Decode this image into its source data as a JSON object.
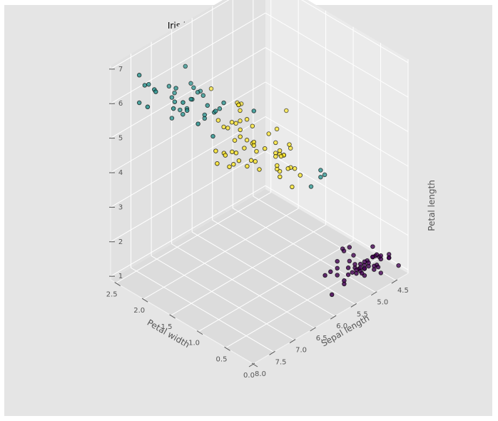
{
  "chart_data": {
    "type": "scatter",
    "title": "Iris k-means clustering with 3 clusters",
    "xlabel": "Petal width",
    "ylabel": "Sepal length",
    "zlabel": "Petal length",
    "x_ticks": [
      "0.0",
      "0.5",
      "1.0",
      "1.5",
      "2.0",
      "2.5"
    ],
    "y_ticks": [
      "4.5",
      "5.0",
      "5.5",
      "6.0",
      "6.5",
      "7.0",
      "7.5",
      "8.0"
    ],
    "z_ticks": [
      "1",
      "2",
      "3",
      "4",
      "5",
      "6",
      "7"
    ],
    "xlim": [
      0.0,
      2.6
    ],
    "ylim": [
      4.2,
      8.0
    ],
    "zlim": [
      0.9,
      7.1
    ],
    "grid": true,
    "colors": {
      "cluster_0": "#440154",
      "cluster_1": "#21918c",
      "cluster_2": "#fde725",
      "figure_background": "#e5e5e5"
    },
    "points": [
      {
        "x": 0.2,
        "y": 5.1,
        "z": 1.4,
        "c": 0
      },
      {
        "x": 0.2,
        "y": 4.9,
        "z": 1.4,
        "c": 0
      },
      {
        "x": 0.2,
        "y": 4.7,
        "z": 1.3,
        "c": 0
      },
      {
        "x": 0.2,
        "y": 4.6,
        "z": 1.5,
        "c": 0
      },
      {
        "x": 0.2,
        "y": 5.0,
        "z": 1.4,
        "c": 0
      },
      {
        "x": 0.4,
        "y": 5.4,
        "z": 1.7,
        "c": 0
      },
      {
        "x": 0.3,
        "y": 4.6,
        "z": 1.4,
        "c": 0
      },
      {
        "x": 0.2,
        "y": 5.0,
        "z": 1.5,
        "c": 0
      },
      {
        "x": 0.2,
        "y": 4.4,
        "z": 1.4,
        "c": 0
      },
      {
        "x": 0.1,
        "y": 4.9,
        "z": 1.5,
        "c": 0
      },
      {
        "x": 0.2,
        "y": 5.4,
        "z": 1.5,
        "c": 0
      },
      {
        "x": 0.2,
        "y": 4.8,
        "z": 1.6,
        "c": 0
      },
      {
        "x": 0.1,
        "y": 4.8,
        "z": 1.4,
        "c": 0
      },
      {
        "x": 0.1,
        "y": 4.3,
        "z": 1.1,
        "c": 0
      },
      {
        "x": 0.2,
        "y": 5.8,
        "z": 1.2,
        "c": 0
      },
      {
        "x": 0.4,
        "y": 5.7,
        "z": 1.5,
        "c": 0
      },
      {
        "x": 0.4,
        "y": 5.4,
        "z": 1.3,
        "c": 0
      },
      {
        "x": 0.3,
        "y": 5.1,
        "z": 1.4,
        "c": 0
      },
      {
        "x": 0.3,
        "y": 5.7,
        "z": 1.7,
        "c": 0
      },
      {
        "x": 0.3,
        "y": 5.1,
        "z": 1.5,
        "c": 0
      },
      {
        "x": 0.2,
        "y": 5.4,
        "z": 1.7,
        "c": 0
      },
      {
        "x": 0.4,
        "y": 5.1,
        "z": 1.5,
        "c": 0
      },
      {
        "x": 0.2,
        "y": 4.6,
        "z": 1.0,
        "c": 0
      },
      {
        "x": 0.5,
        "y": 5.1,
        "z": 1.7,
        "c": 0
      },
      {
        "x": 0.2,
        "y": 4.8,
        "z": 1.9,
        "c": 0
      },
      {
        "x": 0.2,
        "y": 5.0,
        "z": 1.6,
        "c": 0
      },
      {
        "x": 0.4,
        "y": 5.0,
        "z": 1.6,
        "c": 0
      },
      {
        "x": 0.2,
        "y": 5.2,
        "z": 1.5,
        "c": 0
      },
      {
        "x": 0.2,
        "y": 5.2,
        "z": 1.4,
        "c": 0
      },
      {
        "x": 0.2,
        "y": 4.7,
        "z": 1.6,
        "c": 0
      },
      {
        "x": 0.2,
        "y": 4.8,
        "z": 1.6,
        "c": 0
      },
      {
        "x": 0.4,
        "y": 5.4,
        "z": 1.5,
        "c": 0
      },
      {
        "x": 0.1,
        "y": 5.2,
        "z": 1.5,
        "c": 0
      },
      {
        "x": 0.2,
        "y": 5.5,
        "z": 1.4,
        "c": 0
      },
      {
        "x": 0.2,
        "y": 4.9,
        "z": 1.5,
        "c": 0
      },
      {
        "x": 0.2,
        "y": 5.0,
        "z": 1.2,
        "c": 0
      },
      {
        "x": 0.2,
        "y": 5.5,
        "z": 1.3,
        "c": 0
      },
      {
        "x": 0.1,
        "y": 4.9,
        "z": 1.4,
        "c": 0
      },
      {
        "x": 0.2,
        "y": 4.4,
        "z": 1.3,
        "c": 0
      },
      {
        "x": 0.2,
        "y": 5.1,
        "z": 1.5,
        "c": 0
      },
      {
        "x": 0.3,
        "y": 5.0,
        "z": 1.3,
        "c": 0
      },
      {
        "x": 0.3,
        "y": 4.5,
        "z": 1.3,
        "c": 0
      },
      {
        "x": 0.2,
        "y": 4.4,
        "z": 1.3,
        "c": 0
      },
      {
        "x": 0.6,
        "y": 5.0,
        "z": 1.6,
        "c": 0
      },
      {
        "x": 0.4,
        "y": 5.1,
        "z": 1.9,
        "c": 0
      },
      {
        "x": 0.3,
        "y": 4.8,
        "z": 1.4,
        "c": 0
      },
      {
        "x": 0.2,
        "y": 5.1,
        "z": 1.6,
        "c": 0
      },
      {
        "x": 0.2,
        "y": 4.6,
        "z": 1.4,
        "c": 0
      },
      {
        "x": 0.2,
        "y": 5.3,
        "z": 1.5,
        "c": 0
      },
      {
        "x": 0.2,
        "y": 5.0,
        "z": 1.4,
        "c": 0
      },
      {
        "x": 1.4,
        "y": 7.0,
        "z": 4.7,
        "c": 2
      },
      {
        "x": 1.5,
        "y": 6.4,
        "z": 4.5,
        "c": 2
      },
      {
        "x": 1.5,
        "y": 6.9,
        "z": 4.9,
        "c": 2
      },
      {
        "x": 1.3,
        "y": 5.5,
        "z": 4.0,
        "c": 2
      },
      {
        "x": 1.5,
        "y": 6.5,
        "z": 4.6,
        "c": 2
      },
      {
        "x": 1.3,
        "y": 5.7,
        "z": 4.5,
        "c": 2
      },
      {
        "x": 1.6,
        "y": 6.3,
        "z": 4.7,
        "c": 2
      },
      {
        "x": 1.0,
        "y": 4.9,
        "z": 3.3,
        "c": 1
      },
      {
        "x": 1.3,
        "y": 6.6,
        "z": 4.6,
        "c": 2
      },
      {
        "x": 1.4,
        "y": 5.2,
        "z": 3.9,
        "c": 2
      },
      {
        "x": 1.0,
        "y": 5.0,
        "z": 3.5,
        "c": 1
      },
      {
        "x": 1.5,
        "y": 5.9,
        "z": 4.2,
        "c": 2
      },
      {
        "x": 1.0,
        "y": 6.0,
        "z": 4.0,
        "c": 2
      },
      {
        "x": 1.4,
        "y": 6.1,
        "z": 4.7,
        "c": 2
      },
      {
        "x": 1.3,
        "y": 5.6,
        "z": 3.6,
        "c": 2
      },
      {
        "x": 1.4,
        "y": 6.7,
        "z": 4.4,
        "c": 2
      },
      {
        "x": 1.5,
        "y": 5.6,
        "z": 4.5,
        "c": 2
      },
      {
        "x": 1.0,
        "y": 5.8,
        "z": 4.1,
        "c": 2
      },
      {
        "x": 1.5,
        "y": 6.2,
        "z": 4.5,
        "c": 2
      },
      {
        "x": 1.1,
        "y": 5.6,
        "z": 3.9,
        "c": 2
      },
      {
        "x": 1.8,
        "y": 5.9,
        "z": 4.8,
        "c": 2
      },
      {
        "x": 1.3,
        "y": 6.1,
        "z": 4.0,
        "c": 2
      },
      {
        "x": 1.5,
        "y": 6.3,
        "z": 4.9,
        "c": 2
      },
      {
        "x": 1.2,
        "y": 6.1,
        "z": 4.7,
        "c": 2
      },
      {
        "x": 1.3,
        "y": 6.4,
        "z": 4.3,
        "c": 2
      },
      {
        "x": 1.4,
        "y": 6.6,
        "z": 4.4,
        "c": 2
      },
      {
        "x": 1.4,
        "y": 6.8,
        "z": 4.8,
        "c": 2
      },
      {
        "x": 1.7,
        "y": 6.7,
        "z": 5.0,
        "c": 1
      },
      {
        "x": 1.5,
        "y": 6.0,
        "z": 4.5,
        "c": 2
      },
      {
        "x": 1.0,
        "y": 5.7,
        "z": 3.5,
        "c": 2
      },
      {
        "x": 1.1,
        "y": 5.5,
        "z": 3.8,
        "c": 2
      },
      {
        "x": 1.0,
        "y": 5.5,
        "z": 3.7,
        "c": 2
      },
      {
        "x": 1.2,
        "y": 5.8,
        "z": 3.9,
        "c": 2
      },
      {
        "x": 1.6,
        "y": 6.0,
        "z": 5.1,
        "c": 2
      },
      {
        "x": 1.5,
        "y": 5.4,
        "z": 4.5,
        "c": 2
      },
      {
        "x": 1.6,
        "y": 6.0,
        "z": 4.5,
        "c": 2
      },
      {
        "x": 1.5,
        "y": 6.7,
        "z": 4.7,
        "c": 2
      },
      {
        "x": 1.3,
        "y": 6.3,
        "z": 4.4,
        "c": 2
      },
      {
        "x": 1.3,
        "y": 5.6,
        "z": 4.1,
        "c": 2
      },
      {
        "x": 1.3,
        "y": 5.5,
        "z": 4.0,
        "c": 2
      },
      {
        "x": 1.2,
        "y": 5.5,
        "z": 4.4,
        "c": 2
      },
      {
        "x": 1.4,
        "y": 6.1,
        "z": 4.6,
        "c": 2
      },
      {
        "x": 1.2,
        "y": 5.8,
        "z": 4.0,
        "c": 2
      },
      {
        "x": 1.0,
        "y": 5.0,
        "z": 3.3,
        "c": 1
      },
      {
        "x": 1.3,
        "y": 5.6,
        "z": 4.2,
        "c": 2
      },
      {
        "x": 1.2,
        "y": 5.7,
        "z": 4.2,
        "c": 2
      },
      {
        "x": 1.3,
        "y": 5.7,
        "z": 4.2,
        "c": 2
      },
      {
        "x": 1.3,
        "y": 6.2,
        "z": 4.3,
        "c": 2
      },
      {
        "x": 1.1,
        "y": 5.1,
        "z": 3.0,
        "c": 1
      },
      {
        "x": 1.3,
        "y": 5.7,
        "z": 4.1,
        "c": 2
      },
      {
        "x": 2.5,
        "y": 6.3,
        "z": 6.0,
        "c": 1
      },
      {
        "x": 1.9,
        "y": 5.8,
        "z": 5.1,
        "c": 2
      },
      {
        "x": 2.1,
        "y": 7.1,
        "z": 5.9,
        "c": 1
      },
      {
        "x": 1.8,
        "y": 6.3,
        "z": 5.6,
        "c": 1
      },
      {
        "x": 2.2,
        "y": 6.5,
        "z": 5.8,
        "c": 1
      },
      {
        "x": 2.1,
        "y": 7.6,
        "z": 6.6,
        "c": 1
      },
      {
        "x": 1.7,
        "y": 4.9,
        "z": 4.5,
        "c": 2
      },
      {
        "x": 1.8,
        "y": 7.3,
        "z": 6.3,
        "c": 1
      },
      {
        "x": 1.8,
        "y": 6.7,
        "z": 5.8,
        "c": 1
      },
      {
        "x": 2.5,
        "y": 7.2,
        "z": 6.1,
        "c": 1
      },
      {
        "x": 2.0,
        "y": 6.5,
        "z": 5.1,
        "c": 1
      },
      {
        "x": 1.9,
        "y": 6.4,
        "z": 5.3,
        "c": 1
      },
      {
        "x": 2.1,
        "y": 6.8,
        "z": 5.5,
        "c": 1
      },
      {
        "x": 2.0,
        "y": 5.7,
        "z": 5.0,
        "c": 2
      },
      {
        "x": 2.4,
        "y": 5.8,
        "z": 5.1,
        "c": 2
      },
      {
        "x": 2.3,
        "y": 6.4,
        "z": 5.3,
        "c": 1
      },
      {
        "x": 1.8,
        "y": 6.5,
        "z": 5.5,
        "c": 1
      },
      {
        "x": 2.2,
        "y": 7.7,
        "z": 6.7,
        "c": 1
      },
      {
        "x": 2.3,
        "y": 7.7,
        "z": 6.9,
        "c": 1
      },
      {
        "x": 1.5,
        "y": 6.0,
        "z": 5.0,
        "c": 2
      },
      {
        "x": 2.3,
        "y": 6.9,
        "z": 5.7,
        "c": 1
      },
      {
        "x": 2.0,
        "y": 5.6,
        "z": 4.9,
        "c": 2
      },
      {
        "x": 2.0,
        "y": 7.7,
        "z": 6.7,
        "c": 1
      },
      {
        "x": 1.8,
        "y": 6.3,
        "z": 4.9,
        "c": 2
      },
      {
        "x": 2.1,
        "y": 6.7,
        "z": 5.7,
        "c": 1
      },
      {
        "x": 1.8,
        "y": 7.2,
        "z": 6.0,
        "c": 1
      },
      {
        "x": 1.8,
        "y": 6.2,
        "z": 4.8,
        "c": 2
      },
      {
        "x": 1.8,
        "y": 6.1,
        "z": 4.9,
        "c": 2
      },
      {
        "x": 2.1,
        "y": 6.4,
        "z": 5.6,
        "c": 1
      },
      {
        "x": 1.6,
        "y": 7.2,
        "z": 5.8,
        "c": 1
      },
      {
        "x": 1.9,
        "y": 7.4,
        "z": 6.1,
        "c": 1
      },
      {
        "x": 2.0,
        "y": 7.9,
        "z": 6.4,
        "c": 1
      },
      {
        "x": 2.2,
        "y": 6.4,
        "z": 5.6,
        "c": 1
      },
      {
        "x": 1.5,
        "y": 6.3,
        "z": 5.1,
        "c": 2
      },
      {
        "x": 1.4,
        "y": 6.1,
        "z": 5.6,
        "c": 1
      },
      {
        "x": 2.3,
        "y": 7.7,
        "z": 6.1,
        "c": 1
      },
      {
        "x": 2.4,
        "y": 6.3,
        "z": 5.6,
        "c": 1
      },
      {
        "x": 1.8,
        "y": 6.4,
        "z": 5.5,
        "c": 1
      },
      {
        "x": 1.8,
        "y": 6.0,
        "z": 4.8,
        "c": 2
      },
      {
        "x": 2.1,
        "y": 6.9,
        "z": 5.4,
        "c": 1
      },
      {
        "x": 2.4,
        "y": 6.7,
        "z": 5.6,
        "c": 1
      },
      {
        "x": 2.3,
        "y": 6.9,
        "z": 5.1,
        "c": 1
      },
      {
        "x": 1.9,
        "y": 5.8,
        "z": 5.1,
        "c": 2
      },
      {
        "x": 2.3,
        "y": 6.8,
        "z": 5.9,
        "c": 1
      },
      {
        "x": 2.5,
        "y": 6.7,
        "z": 5.7,
        "c": 1
      },
      {
        "x": 2.3,
        "y": 6.7,
        "z": 5.2,
        "c": 1
      },
      {
        "x": 1.9,
        "y": 6.3,
        "z": 5.0,
        "c": 2
      },
      {
        "x": 2.0,
        "y": 6.5,
        "z": 5.2,
        "c": 1
      },
      {
        "x": 2.3,
        "y": 6.2,
        "z": 5.4,
        "c": 1
      },
      {
        "x": 1.8,
        "y": 5.9,
        "z": 5.1,
        "c": 2
      }
    ]
  }
}
